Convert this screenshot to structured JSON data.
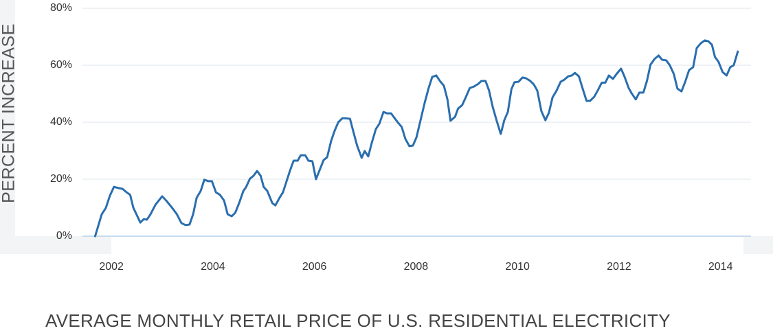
{
  "chart_data": {
    "type": "line",
    "title": "AVERAGE MONTHLY RETAIL PRICE OF U.S. RESIDENTIAL ELECTRICITY",
    "y_label": "PERCENT INCREASE",
    "xlim": [
      2001.43,
      2014.6
    ],
    "xticks": [
      2002,
      2004,
      2006,
      2008,
      2010,
      2012,
      2014
    ],
    "ylim": [
      0,
      80
    ],
    "yticks": [
      {
        "value": 0,
        "label": "0%"
      },
      {
        "value": 20,
        "label": "20%"
      },
      {
        "value": 40,
        "label": "40%"
      },
      {
        "value": 60,
        "label": "60%"
      },
      {
        "value": 80,
        "label": "80%"
      }
    ],
    "grid": true,
    "x": [
      2001.68,
      2001.81,
      2001.89,
      2001.97,
      2002.05,
      2002.14,
      2002.22,
      2002.3,
      2002.37,
      2002.43,
      2002.57,
      2002.64,
      2002.7,
      2002.77,
      2002.87,
      2003.0,
      2003.08,
      2003.19,
      2003.29,
      2003.38,
      2003.46,
      2003.54,
      2003.61,
      2003.68,
      2003.76,
      2003.83,
      2003.91,
      2003.98,
      2004.06,
      2004.14,
      2004.22,
      2004.29,
      2004.37,
      2004.44,
      2004.52,
      2004.6,
      2004.65,
      2004.73,
      2004.8,
      2004.87,
      2004.94,
      2005.0,
      2005.07,
      2005.17,
      2005.23,
      2005.32,
      2005.38,
      2005.46,
      2005.52,
      2005.59,
      2005.67,
      2005.73,
      2005.82,
      2005.88,
      2005.96,
      2006.03,
      2006.1,
      2006.18,
      2006.25,
      2006.33,
      2006.4,
      2006.47,
      2006.55,
      2006.61,
      2006.7,
      2006.76,
      2006.84,
      2006.93,
      2006.99,
      2007.06,
      2007.13,
      2007.21,
      2007.28,
      2007.36,
      2007.43,
      2007.51,
      2007.58,
      2007.64,
      2007.72,
      2007.79,
      2007.87,
      2007.94,
      2008.01,
      2008.09,
      2008.17,
      2008.25,
      2008.32,
      2008.4,
      2008.47,
      2008.55,
      2008.62,
      2008.68,
      2008.77,
      2008.83,
      2008.91,
      2008.98,
      2009.06,
      2009.14,
      2009.23,
      2009.29,
      2009.37,
      2009.44,
      2009.51,
      2009.59,
      2009.67,
      2009.74,
      2009.81,
      2009.88,
      2009.94,
      2010.02,
      2010.1,
      2010.17,
      2010.25,
      2010.32,
      2010.39,
      2010.47,
      2010.55,
      2010.62,
      2010.69,
      2010.77,
      2010.85,
      2010.92,
      2011.0,
      2011.07,
      2011.13,
      2011.21,
      2011.28,
      2011.36,
      2011.43,
      2011.51,
      2011.58,
      2011.66,
      2011.73,
      2011.8,
      2011.88,
      2011.95,
      2012.04,
      2012.11,
      2012.19,
      2012.25,
      2012.33,
      2012.4,
      2012.48,
      2012.55,
      2012.62,
      2012.7,
      2012.78,
      2012.85,
      2012.93,
      2013.0,
      2013.08,
      2013.15,
      2013.23,
      2013.31,
      2013.38,
      2013.46,
      2013.53,
      2013.61,
      2013.69,
      2013.76,
      2013.83,
      2013.89,
      2013.96,
      2014.04,
      2014.12,
      2014.19,
      2014.26,
      2014.34
    ],
    "series": [
      {
        "color": "#2a6eae",
        "values": [
          0,
          7.7,
          9.9,
          14.2,
          17.3,
          16.9,
          16.6,
          15.4,
          14.5,
          10.1,
          4.8,
          6.0,
          5.8,
          7.7,
          11.1,
          14.0,
          12.5,
          10.1,
          7.7,
          4.6,
          3.9,
          4.1,
          7.7,
          13.5,
          15.9,
          19.8,
          19.3,
          19.3,
          15.4,
          14.5,
          12.5,
          7.7,
          7.0,
          8.2,
          11.8,
          15.9,
          17.1,
          20.2,
          21.2,
          22.9,
          21.2,
          17.3,
          15.9,
          11.6,
          10.8,
          13.7,
          15.4,
          19.8,
          23.1,
          26.5,
          26.5,
          28.4,
          28.4,
          26.5,
          26.3,
          20.0,
          23.1,
          26.7,
          27.7,
          33.5,
          37.1,
          40.0,
          41.4,
          41.4,
          41.2,
          37.1,
          31.8,
          27.5,
          29.9,
          28.0,
          32.8,
          37.6,
          39.5,
          43.6,
          43.1,
          43.1,
          41.4,
          40.0,
          38.3,
          34.2,
          31.6,
          31.8,
          34.7,
          40.7,
          46.7,
          52.0,
          55.9,
          56.4,
          54.5,
          52.8,
          48.0,
          40.5,
          41.9,
          44.8,
          46.0,
          48.7,
          52.0,
          52.5,
          53.5,
          54.5,
          54.5,
          51.1,
          45.5,
          40.5,
          35.9,
          40.7,
          43.6,
          51.6,
          54.0,
          54.2,
          55.7,
          55.4,
          54.5,
          53.3,
          51.1,
          43.9,
          40.7,
          43.4,
          48.7,
          51.1,
          54.2,
          54.9,
          56.1,
          56.4,
          57.3,
          56.1,
          52.0,
          47.5,
          47.5,
          48.9,
          51.1,
          53.9,
          53.9,
          56.4,
          55.2,
          56.9,
          58.8,
          55.9,
          52.0,
          50.1,
          48.0,
          50.4,
          50.4,
          54.5,
          60.2,
          62.2,
          63.4,
          61.9,
          61.7,
          60.0,
          56.9,
          51.8,
          50.8,
          54.5,
          58.3,
          59.3,
          66.0,
          67.7,
          68.7,
          68.4,
          67.2,
          62.9,
          61.2,
          57.6,
          56.4,
          59.3,
          60.0,
          64.8
        ]
      }
    ]
  }
}
